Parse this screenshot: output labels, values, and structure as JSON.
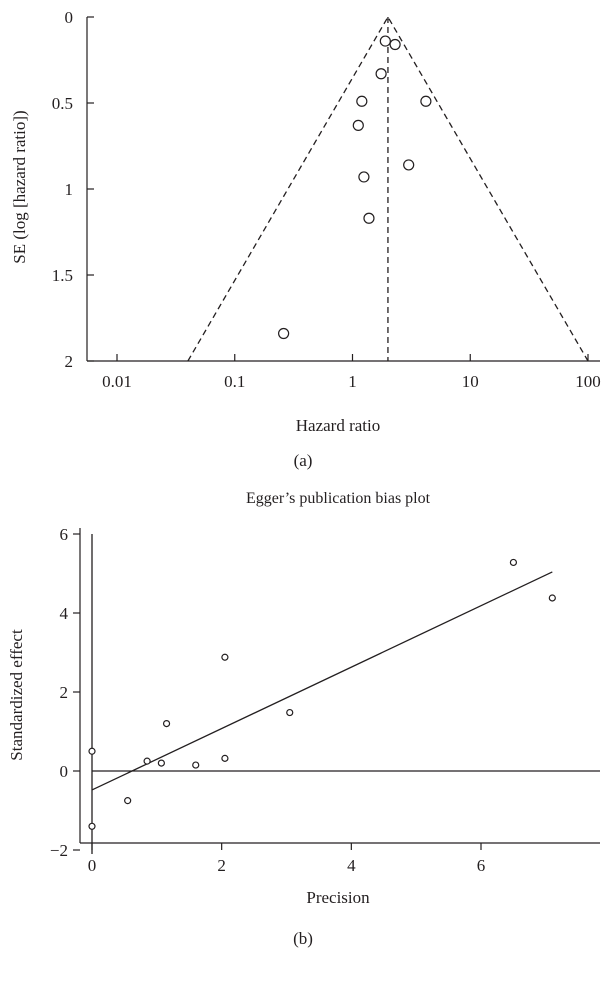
{
  "chart_data": [
    {
      "type": "scatter",
      "panel_label": "(a)",
      "title": "",
      "xlabel": "Hazard ratio",
      "ylabel": "SE (log [hazard ratio])",
      "xscale": "log",
      "xlim": [
        0.005,
        110
      ],
      "ylim": [
        2,
        0
      ],
      "y_inverted": true,
      "xticks": [
        0.01,
        0.1,
        1,
        10,
        100
      ],
      "xtick_labels": [
        "0.01",
        "0.1",
        "1",
        "10",
        "100"
      ],
      "yticks": [
        0,
        0.5,
        1,
        1.5,
        2
      ],
      "ytick_labels": [
        "0",
        "0.5",
        "1",
        "1.5",
        "2"
      ],
      "pooled_estimate": 2.0,
      "funnel": [
        [
          0.04,
          2
        ],
        [
          2.0,
          0
        ],
        [
          100,
          2
        ]
      ],
      "points": [
        {
          "x": 1.9,
          "y": 0.14
        },
        {
          "x": 2.3,
          "y": 0.16
        },
        {
          "x": 1.75,
          "y": 0.33
        },
        {
          "x": 1.2,
          "y": 0.49
        },
        {
          "x": 4.2,
          "y": 0.49
        },
        {
          "x": 1.12,
          "y": 0.63
        },
        {
          "x": 3.0,
          "y": 0.86
        },
        {
          "x": 1.25,
          "y": 0.93
        },
        {
          "x": 1.38,
          "y": 1.17
        },
        {
          "x": 0.26,
          "y": 1.84
        }
      ],
      "grid": false,
      "legend": "none"
    },
    {
      "type": "scatter",
      "panel_label": "(b)",
      "title": "Egger’s publication bias plot",
      "xlabel": "Precision",
      "ylabel": "Standardized effect",
      "xlim": [
        -0.2,
        7.8
      ],
      "ylim": [
        -2.3,
        6.1
      ],
      "xticks": [
        0,
        2,
        4,
        6
      ],
      "xtick_labels": [
        "0",
        "2",
        "4",
        "6"
      ],
      "yticks": [
        -2,
        0,
        2,
        4,
        6
      ],
      "ytick_labels": [
        "−2",
        "0",
        "2",
        "4",
        "6"
      ],
      "points": [
        {
          "x": 0.0,
          "y": 0.5
        },
        {
          "x": 0.0,
          "y": -1.4
        },
        {
          "x": 0.55,
          "y": -0.75
        },
        {
          "x": 0.85,
          "y": 0.25
        },
        {
          "x": 1.07,
          "y": 0.2
        },
        {
          "x": 1.15,
          "y": 1.2
        },
        {
          "x": 1.6,
          "y": 0.15
        },
        {
          "x": 2.05,
          "y": 0.32
        },
        {
          "x": 2.05,
          "y": 2.88
        },
        {
          "x": 3.05,
          "y": 1.48
        },
        {
          "x": 6.5,
          "y": 5.28
        },
        {
          "x": 7.1,
          "y": 4.38
        }
      ],
      "regression_line": {
        "x": [
          0,
          7.1
        ],
        "y": [
          -0.48,
          5.04
        ]
      },
      "vertical_segment": {
        "x": 0,
        "y": [
          -2.1,
          6.0
        ]
      },
      "zero_line_y": 0,
      "grid": false,
      "legend": "none"
    }
  ]
}
